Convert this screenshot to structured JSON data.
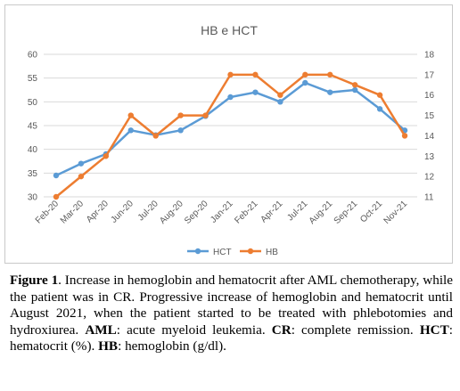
{
  "chart_data": {
    "type": "line",
    "title": "HB e HCT",
    "categories": [
      "Feb-20",
      "Mar-20",
      "Apr-20",
      "Jun-20",
      "Jul-20",
      "Aug-20",
      "Sep-20",
      "Jan-21",
      "Feb-21",
      "Apr-21",
      "Jul-21",
      "Aug-21",
      "Sep-21",
      "Oct-21",
      "Nov-21"
    ],
    "series": [
      {
        "name": "HCT",
        "axis": "left",
        "color": "#5B9BD5",
        "values": [
          34.5,
          37,
          39,
          44,
          43,
          44,
          47,
          51,
          52,
          50,
          54,
          52,
          52.5,
          48.5,
          44
        ]
      },
      {
        "name": "HB",
        "axis": "right",
        "color": "#ED7D31",
        "values": [
          11,
          12,
          13,
          15,
          14,
          15,
          15,
          17,
          17,
          16,
          17,
          17,
          16.5,
          16,
          14
        ]
      }
    ],
    "y_left": {
      "min": 30,
      "max": 60,
      "ticks": [
        30,
        35,
        40,
        45,
        50,
        55,
        60
      ]
    },
    "y_right": {
      "min": 11,
      "max": 18,
      "ticks": [
        11,
        12,
        13,
        14,
        15,
        16,
        17,
        18
      ]
    },
    "grid": true,
    "legend_position": "bottom"
  },
  "caption": {
    "lead_bold": "Figure 1",
    "lead_rest": ". Increase in hemoglobin and hematocrit after AML chemotherapy, while the patient was in CR. Progressive increase of hemoglobin and hematocrit until August 2021, when the patient started to be treated with phlebotomies and hydroxiurea. ",
    "aml_abbr": "AML",
    "aml_def": ": acute myeloid leukemia. ",
    "cr_abbr": "CR",
    "cr_def": ": complete remission. ",
    "hct_abbr": "HCT",
    "hct_def": ": hematocrit (%). ",
    "hb_abbr": "HB",
    "hb_def": ": hemoglobin (g/dl)."
  }
}
